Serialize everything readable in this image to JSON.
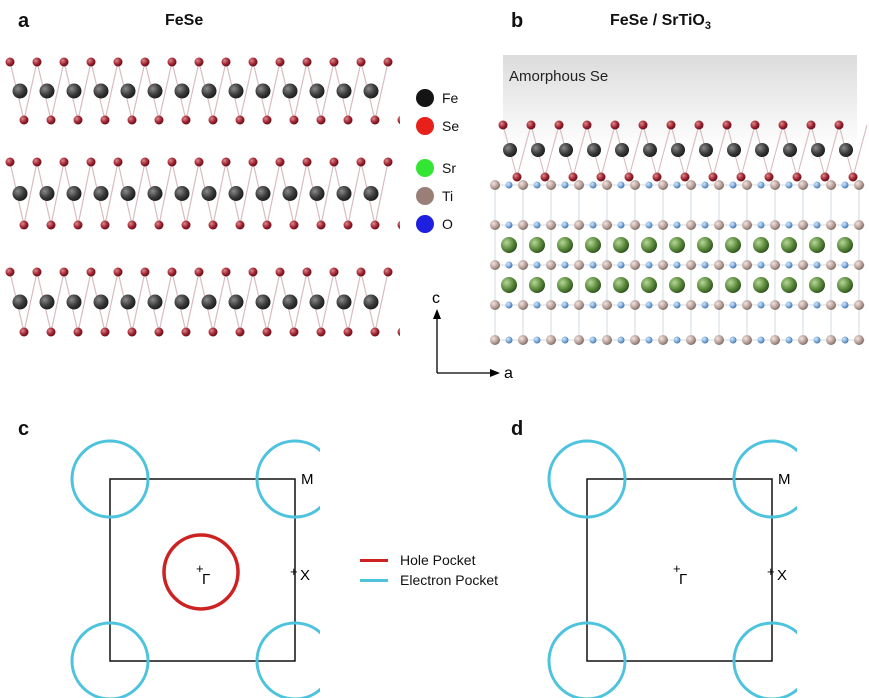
{
  "panels": {
    "a": {
      "letter": "a",
      "title": "FeSe"
    },
    "b": {
      "letter": "b",
      "title_main": "FeSe / SrTiO",
      "title_sub": "3",
      "overlayer": "Amorphous Se"
    },
    "c": {
      "letter": "c"
    },
    "d": {
      "letter": "d"
    }
  },
  "atom_legend": [
    {
      "label": "Fe",
      "color": "#141414"
    },
    {
      "label": "Se",
      "color": "#e8201a"
    },
    {
      "label": "Sr",
      "color": "#33e633"
    },
    {
      "label": "Ti",
      "color": "#9a7f78"
    },
    {
      "label": "O",
      "color": "#1f1fe0"
    }
  ],
  "axes": {
    "c_label": "c",
    "a_label": "a"
  },
  "brillouin_zone": {
    "gamma": "Γ",
    "x_point": "X",
    "m_point": "M"
  },
  "pocket_legend": {
    "hole": {
      "label": "Hole Pocket",
      "color": "#cc2222"
    },
    "electron": {
      "label": "Electron Pocket",
      "color": "#4ec3dd"
    }
  }
}
